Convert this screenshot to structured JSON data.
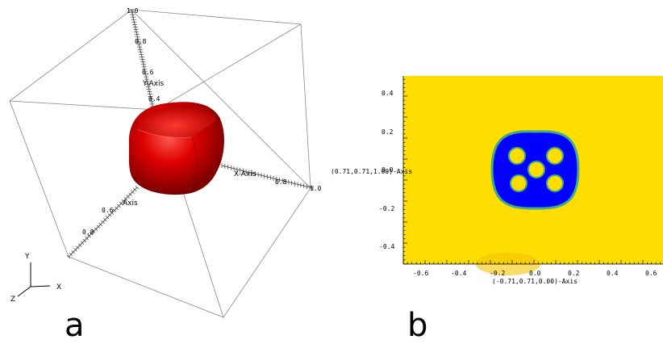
{
  "panel_a": {
    "label": "a",
    "axes": {
      "x_title": "X-Axis",
      "y_title": "Y-Axis",
      "y_ticks": [
        "1.0",
        "0.8",
        "0.6",
        "0.4"
      ],
      "x_ticks": [
        "0.8",
        "1.0"
      ],
      "z_ticks": [
        "0.6",
        "0.8"
      ],
      "z_title": "Axis",
      "orientation": {
        "x": "X",
        "y": "Y",
        "z": "Z"
      }
    },
    "object": {
      "color": "#cc0000",
      "description_icon": "red-rounded-cube-icon"
    }
  },
  "panel_b": {
    "label": "b",
    "x_axis_title": "(-0.71,0.71,0.00)-Axis",
    "y_axis_title": "(0.71,0.71,1.00)-Axis",
    "x_ticks": [
      "-0.6",
      "-0.4",
      "-0.2",
      "0.0",
      "0.2",
      "0.4",
      "0.6"
    ],
    "y_ticks": [
      "0.4",
      "0.2",
      "0.0",
      "-0.2",
      "-0.4"
    ],
    "colors": {
      "background": "#ffdd00",
      "region": "#0000ff",
      "outline": "#3fae86"
    }
  }
}
